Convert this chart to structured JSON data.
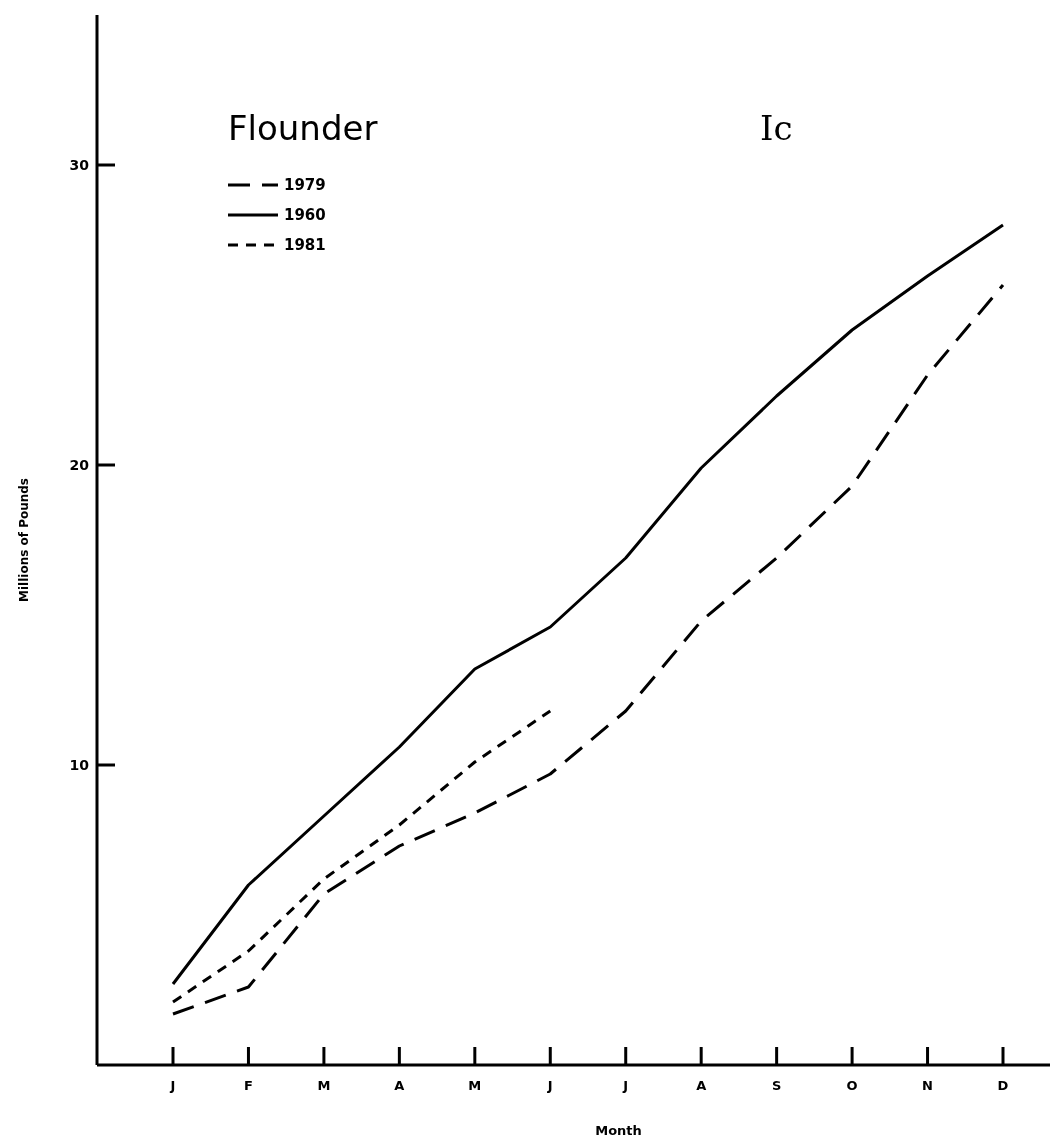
{
  "chart_data": {
    "type": "line",
    "title": "Flounder",
    "annotations": [
      "Ic"
    ],
    "xlabel": "Month",
    "ylabel": "Millions of Pounds",
    "categories": [
      "J",
      "F",
      "M",
      "A",
      "M",
      "J",
      "J",
      "A",
      "S",
      "O",
      "N",
      "D"
    ],
    "ylim": [
      0,
      35
    ],
    "yticks": [
      10,
      20,
      30
    ],
    "grid": false,
    "legend": "top left",
    "series": [
      {
        "name": "1979",
        "color": "#000000",
        "line_style": "dashed",
        "values": [
          1.7,
          2.6,
          5.7,
          7.3,
          8.4,
          9.7,
          11.8,
          14.8,
          16.9,
          19.3,
          23.0,
          26.0
        ]
      },
      {
        "name": "1960",
        "color": "#000000",
        "line_style": "solid",
        "values": [
          2.7,
          6.0,
          8.3,
          10.6,
          13.2,
          14.6,
          16.9,
          19.9,
          22.3,
          24.5,
          26.3,
          28.0
        ]
      },
      {
        "name": "1981",
        "color": "#000000",
        "line_style": "dotted",
        "values": [
          2.1,
          3.8,
          6.2,
          8.0,
          10.1,
          11.8,
          null,
          null,
          null,
          null,
          null,
          null
        ]
      }
    ]
  }
}
